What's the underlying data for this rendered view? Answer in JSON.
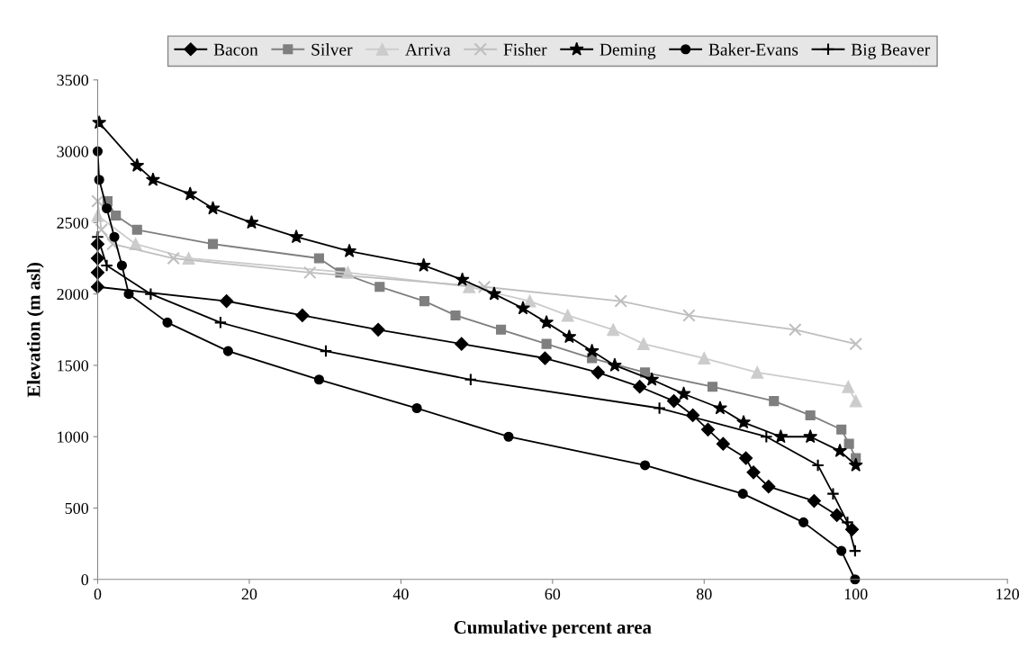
{
  "chart_data": {
    "type": "line",
    "xlabel": "Cumulative percent area",
    "ylabel": "Elevation (m asl)",
    "xlim": [
      0,
      120
    ],
    "xticks": [
      0,
      20,
      40,
      60,
      80,
      100,
      120
    ],
    "ylim": [
      0,
      3500
    ],
    "yticks": [
      0,
      500,
      1000,
      1500,
      2000,
      2500,
      3000,
      3500
    ],
    "grid": false,
    "legend": "top",
    "series": [
      {
        "name": "Bacon",
        "color": "#000000",
        "marker": "diamond",
        "x": [
          0,
          0,
          0,
          0,
          17,
          27,
          37,
          48,
          59,
          66,
          71.5,
          76,
          78.5,
          80.5,
          82.5,
          85.5,
          86.5,
          88.5,
          94.5,
          97.5,
          99.5
        ],
        "values": [
          2350,
          2250,
          2150,
          2050,
          1950,
          1850,
          1750,
          1650,
          1550,
          1450,
          1350,
          1250,
          1150,
          1050,
          950,
          850,
          750,
          650,
          550,
          450,
          350
        ]
      },
      {
        "name": "Silver",
        "color": "#7f7f7f",
        "marker": "square",
        "x": [
          1.3,
          2.4,
          5.2,
          15.2,
          29.2,
          32,
          37.2,
          43.1,
          47.2,
          53.2,
          59.2,
          65.2,
          72.2,
          81.1,
          89.2,
          94,
          98.1,
          99.1,
          100
        ],
        "values": [
          2650,
          2550,
          2450,
          2350,
          2250,
          2150,
          2050,
          1950,
          1850,
          1750,
          1650,
          1550,
          1450,
          1350,
          1250,
          1150,
          1050,
          950,
          850
        ]
      },
      {
        "name": "Arriva",
        "color": "#cccccc",
        "marker": "triangle",
        "x": [
          0,
          5,
          12,
          33,
          49,
          57,
          62,
          68,
          72,
          80,
          87,
          99,
          100
        ],
        "values": [
          2550,
          2350,
          2250,
          2150,
          2050,
          1950,
          1850,
          1750,
          1650,
          1550,
          1450,
          1350,
          1250
        ]
      },
      {
        "name": "Fisher",
        "color": "#bfbfbf",
        "marker": "cross",
        "x": [
          0,
          0.5,
          2,
          10,
          28,
          51,
          69,
          78,
          92,
          100
        ],
        "values": [
          2650,
          2450,
          2350,
          2250,
          2150,
          2050,
          1950,
          1850,
          1750,
          1650
        ]
      },
      {
        "name": "Deming",
        "color": "#000000",
        "marker": "star",
        "x": [
          0.2,
          5.2,
          7.3,
          12.2,
          15.2,
          20.3,
          26.2,
          33.2,
          43,
          48.1,
          52.3,
          56.1,
          59.2,
          62.2,
          65.2,
          68.2,
          73.1,
          77.3,
          82.1,
          85.2,
          90.1,
          94,
          97.9,
          100
        ],
        "values": [
          3200,
          2900,
          2800,
          2700,
          2600,
          2500,
          2400,
          2300,
          2200,
          2100,
          2000,
          1900,
          1800,
          1700,
          1600,
          1500,
          1400,
          1300,
          1200,
          1100,
          1000,
          1000,
          900,
          800
        ]
      },
      {
        "name": "Baker-Evans",
        "color": "#000000",
        "marker": "circle",
        "x": [
          0,
          0.2,
          1.2,
          2.2,
          3.2,
          4.1,
          9.2,
          17.2,
          29.2,
          42.1,
          54.2,
          72.2,
          85.1,
          93.1,
          98.1,
          99.9
        ],
        "values": [
          3000,
          2800,
          2600,
          2400,
          2200,
          2000,
          1800,
          1600,
          1400,
          1200,
          1000,
          800,
          600,
          400,
          200,
          0
        ]
      },
      {
        "name": "Big Beaver",
        "color": "#000000",
        "marker": "plus",
        "x": [
          0,
          1.2,
          7,
          16.2,
          30.1,
          49.2,
          74.1,
          88.2,
          95,
          97,
          98.9,
          99.9
        ],
        "values": [
          2400,
          2200,
          2000,
          1800,
          1600,
          1400,
          1200,
          1000,
          800,
          600,
          400,
          200
        ]
      }
    ]
  }
}
